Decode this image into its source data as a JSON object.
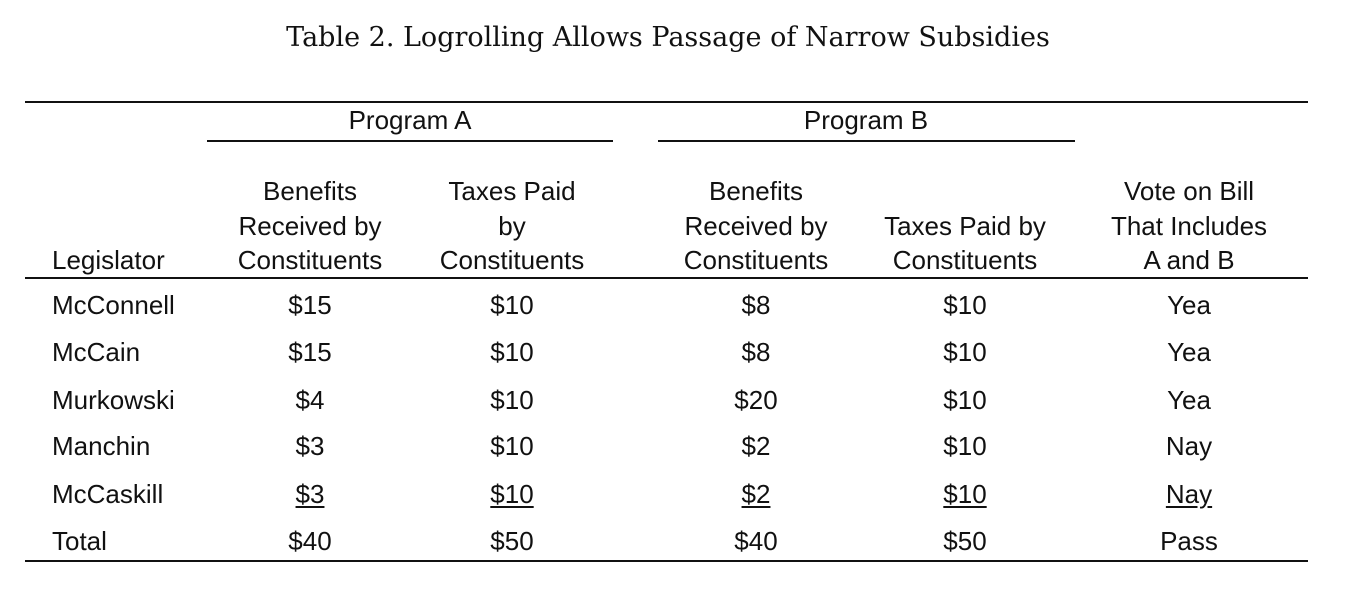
{
  "title": "Table 2. Logrolling Allows Passage of Narrow Subsidies",
  "groups": [
    "Program A",
    "Program B"
  ],
  "columns": [
    [
      "Legislator"
    ],
    [
      "Benefits",
      "Received by",
      "Constituents"
    ],
    [
      "Taxes Paid",
      "by",
      "Constituents"
    ],
    [
      "Benefits",
      "Received by",
      "Constituents"
    ],
    [
      "Taxes Paid by",
      "Constituents"
    ],
    [
      "Vote on Bill",
      "That Includes",
      "A and B"
    ]
  ],
  "rows": [
    [
      "McConnell",
      "$15",
      "$10",
      "$8",
      "$10",
      "Yea"
    ],
    [
      "McCain",
      "$15",
      "$10",
      "$8",
      "$10",
      "Yea"
    ],
    [
      "Murkowski",
      "$4",
      "$10",
      "$20",
      "$10",
      "Yea"
    ],
    [
      "Manchin",
      "$3",
      "$10",
      "$2",
      "$10",
      "Nay"
    ],
    [
      "McCaskill",
      "$3",
      "$10",
      "$2",
      "$10",
      "Nay"
    ],
    [
      "Total",
      "$40",
      "$50",
      "$40",
      "$50",
      "Pass"
    ]
  ]
}
